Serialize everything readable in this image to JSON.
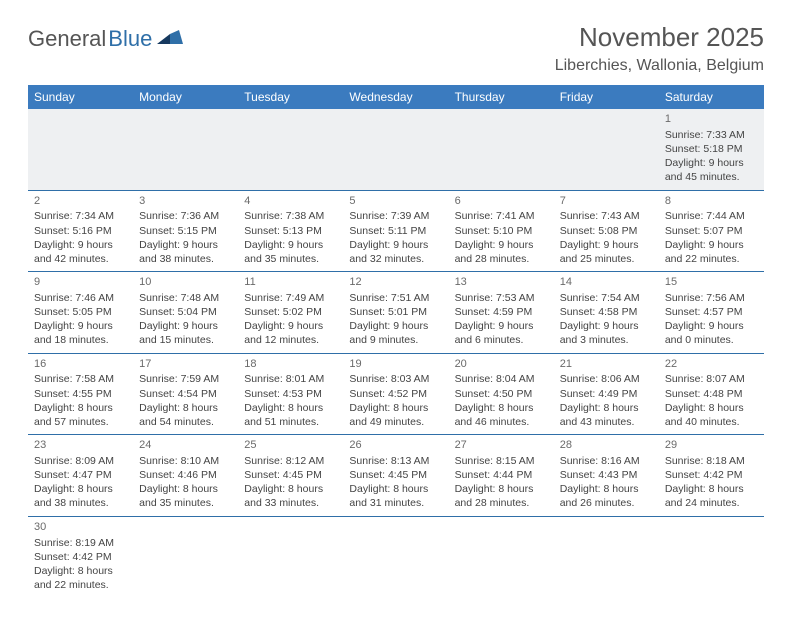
{
  "logo": {
    "general": "General",
    "blue": "Blue"
  },
  "title": "November 2025",
  "location": "Liberchies, Wallonia, Belgium",
  "colors": {
    "header_bg": "#3b7bbf",
    "header_text": "#ffffff",
    "border": "#2f6fa8",
    "text": "#444444",
    "logo_blue": "#2f6fa8"
  },
  "day_headers": [
    "Sunday",
    "Monday",
    "Tuesday",
    "Wednesday",
    "Thursday",
    "Friday",
    "Saturday"
  ],
  "weeks": [
    [
      null,
      null,
      null,
      null,
      null,
      null,
      {
        "n": "1",
        "sr": "7:33 AM",
        "ss": "5:18 PM",
        "dl": "9 hours and 45 minutes."
      }
    ],
    [
      {
        "n": "2",
        "sr": "7:34 AM",
        "ss": "5:16 PM",
        "dl": "9 hours and 42 minutes."
      },
      {
        "n": "3",
        "sr": "7:36 AM",
        "ss": "5:15 PM",
        "dl": "9 hours and 38 minutes."
      },
      {
        "n": "4",
        "sr": "7:38 AM",
        "ss": "5:13 PM",
        "dl": "9 hours and 35 minutes."
      },
      {
        "n": "5",
        "sr": "7:39 AM",
        "ss": "5:11 PM",
        "dl": "9 hours and 32 minutes."
      },
      {
        "n": "6",
        "sr": "7:41 AM",
        "ss": "5:10 PM",
        "dl": "9 hours and 28 minutes."
      },
      {
        "n": "7",
        "sr": "7:43 AM",
        "ss": "5:08 PM",
        "dl": "9 hours and 25 minutes."
      },
      {
        "n": "8",
        "sr": "7:44 AM",
        "ss": "5:07 PM",
        "dl": "9 hours and 22 minutes."
      }
    ],
    [
      {
        "n": "9",
        "sr": "7:46 AM",
        "ss": "5:05 PM",
        "dl": "9 hours and 18 minutes."
      },
      {
        "n": "10",
        "sr": "7:48 AM",
        "ss": "5:04 PM",
        "dl": "9 hours and 15 minutes."
      },
      {
        "n": "11",
        "sr": "7:49 AM",
        "ss": "5:02 PM",
        "dl": "9 hours and 12 minutes."
      },
      {
        "n": "12",
        "sr": "7:51 AM",
        "ss": "5:01 PM",
        "dl": "9 hours and 9 minutes."
      },
      {
        "n": "13",
        "sr": "7:53 AM",
        "ss": "4:59 PM",
        "dl": "9 hours and 6 minutes."
      },
      {
        "n": "14",
        "sr": "7:54 AM",
        "ss": "4:58 PM",
        "dl": "9 hours and 3 minutes."
      },
      {
        "n": "15",
        "sr": "7:56 AM",
        "ss": "4:57 PM",
        "dl": "9 hours and 0 minutes."
      }
    ],
    [
      {
        "n": "16",
        "sr": "7:58 AM",
        "ss": "4:55 PM",
        "dl": "8 hours and 57 minutes."
      },
      {
        "n": "17",
        "sr": "7:59 AM",
        "ss": "4:54 PM",
        "dl": "8 hours and 54 minutes."
      },
      {
        "n": "18",
        "sr": "8:01 AM",
        "ss": "4:53 PM",
        "dl": "8 hours and 51 minutes."
      },
      {
        "n": "19",
        "sr": "8:03 AM",
        "ss": "4:52 PM",
        "dl": "8 hours and 49 minutes."
      },
      {
        "n": "20",
        "sr": "8:04 AM",
        "ss": "4:50 PM",
        "dl": "8 hours and 46 minutes."
      },
      {
        "n": "21",
        "sr": "8:06 AM",
        "ss": "4:49 PM",
        "dl": "8 hours and 43 minutes."
      },
      {
        "n": "22",
        "sr": "8:07 AM",
        "ss": "4:48 PM",
        "dl": "8 hours and 40 minutes."
      }
    ],
    [
      {
        "n": "23",
        "sr": "8:09 AM",
        "ss": "4:47 PM",
        "dl": "8 hours and 38 minutes."
      },
      {
        "n": "24",
        "sr": "8:10 AM",
        "ss": "4:46 PM",
        "dl": "8 hours and 35 minutes."
      },
      {
        "n": "25",
        "sr": "8:12 AM",
        "ss": "4:45 PM",
        "dl": "8 hours and 33 minutes."
      },
      {
        "n": "26",
        "sr": "8:13 AM",
        "ss": "4:45 PM",
        "dl": "8 hours and 31 minutes."
      },
      {
        "n": "27",
        "sr": "8:15 AM",
        "ss": "4:44 PM",
        "dl": "8 hours and 28 minutes."
      },
      {
        "n": "28",
        "sr": "8:16 AM",
        "ss": "4:43 PM",
        "dl": "8 hours and 26 minutes."
      },
      {
        "n": "29",
        "sr": "8:18 AM",
        "ss": "4:42 PM",
        "dl": "8 hours and 24 minutes."
      }
    ],
    [
      {
        "n": "30",
        "sr": "8:19 AM",
        "ss": "4:42 PM",
        "dl": "8 hours and 22 minutes."
      },
      null,
      null,
      null,
      null,
      null,
      null
    ]
  ],
  "labels": {
    "sunrise": "Sunrise: ",
    "sunset": "Sunset: ",
    "daylight": "Daylight: "
  }
}
